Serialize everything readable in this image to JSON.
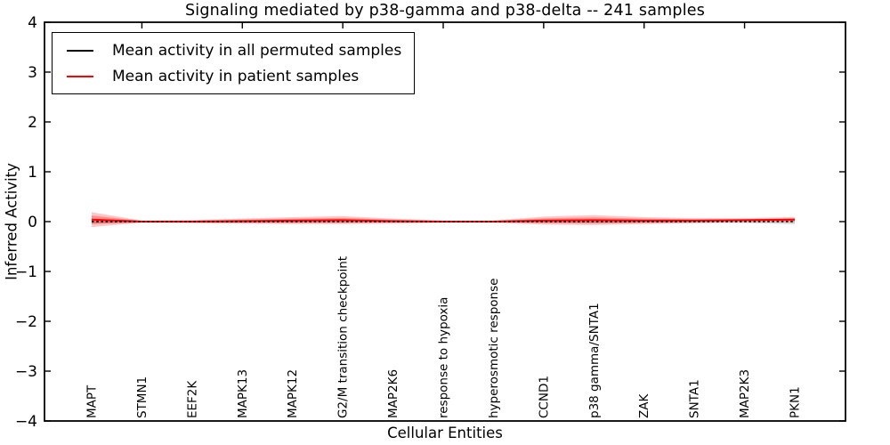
{
  "title": "Signaling mediated by p38-gamma and p38-delta -- 241 samples",
  "axes": {
    "ylabel": "Inferred Activity",
    "xlabel": "Cellular Entities",
    "yticks": [
      "4",
      "3",
      "2",
      "1",
      "0",
      "−1",
      "−2",
      "−3",
      "−4"
    ]
  },
  "legend": {
    "items": [
      {
        "label": "Mean activity in all permuted samples",
        "color": "#000000"
      },
      {
        "label": "Mean activity in patient samples",
        "color": "#ff0000"
      }
    ]
  },
  "chart_data": {
    "type": "line",
    "title": "Signaling mediated by p38-gamma and p38-delta -- 241 samples",
    "xlabel": "Cellular Entities",
    "ylabel": "Inferred Activity",
    "ylim": [
      -4,
      4
    ],
    "grid": false,
    "legend_position": "upper left",
    "categories": [
      "MAPT",
      "STMN1",
      "EEF2K",
      "MAPK13",
      "MAPK12",
      "G2/M transition checkpoint",
      "MAP2K6",
      "response to hypoxia",
      "hyperosmotic response",
      "CCND1",
      "p38 gamma/SNTA1",
      "ZAK",
      "SNTA1",
      "MAP2K3",
      "PKN1"
    ],
    "xtick_indices": [
      1,
      3,
      5,
      7,
      9,
      11,
      13
    ],
    "series": [
      {
        "name": "Mean activity in all permuted samples",
        "color": "#000000",
        "line_style": "dashed",
        "mean": [
          0,
          0,
          0,
          0,
          0,
          0,
          0,
          0,
          0,
          0,
          0,
          0,
          0,
          0,
          0
        ],
        "std": [
          0.05,
          0.02,
          0.02,
          0.03,
          0.03,
          0.03,
          0.02,
          0.02,
          0.02,
          0.03,
          0.04,
          0.03,
          0.03,
          0.03,
          0.05
        ]
      },
      {
        "name": "Mean activity in patient samples",
        "color": "#ff0000",
        "line_style": "solid",
        "mean": [
          0.04,
          0.0,
          0.0,
          0.01,
          0.02,
          0.03,
          0.01,
          0.0,
          0.0,
          0.02,
          0.03,
          0.02,
          0.02,
          0.03,
          0.04
        ],
        "std": [
          0.15,
          0.02,
          0.03,
          0.05,
          0.07,
          0.08,
          0.05,
          0.02,
          0.02,
          0.08,
          0.1,
          0.07,
          0.05,
          0.04,
          0.05
        ]
      }
    ]
  }
}
